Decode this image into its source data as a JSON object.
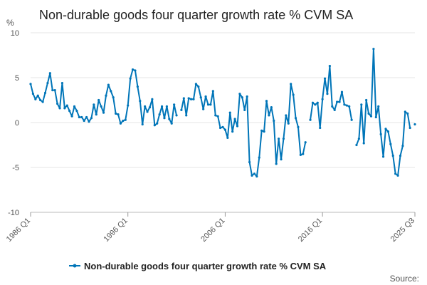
{
  "chart_data": {
    "type": "line",
    "title": "Non-durable goods four quarter growth rate % CVM SA",
    "ylabel": "%",
    "xlabel": "",
    "ylim": [
      -10,
      10
    ],
    "yticks": [
      10,
      5,
      0,
      -5,
      -10
    ],
    "grid": true,
    "legend_position": "bottom",
    "source": "Source:",
    "line_color": "#0075b8",
    "x_tick_labels": [
      "1986 Q1",
      "1996 Q1",
      "2006 Q1",
      "2016 Q1",
      "2025 Q3"
    ],
    "x_tick_indices": [
      0,
      40,
      80,
      120,
      158
    ],
    "series": [
      {
        "name": "Non-durable goods four quarter growth rate % CVM SA",
        "start": "1986 Q1",
        "frequency": "quarterly",
        "values": [
          4.3,
          3.2,
          2.6,
          3.0,
          2.5,
          2.3,
          3.3,
          4.4,
          5.5,
          3.6,
          3.6,
          2.1,
          1.6,
          4.4,
          1.6,
          1.9,
          1.3,
          0.7,
          1.8,
          1.3,
          0.6,
          0.6,
          0.2,
          0.6,
          0.1,
          0.5,
          2.0,
          0.9,
          2.5,
          1.8,
          1.1,
          3.0,
          4.2,
          3.5,
          2.8,
          1.0,
          0.9,
          -0.1,
          0.2,
          0.3,
          1.9,
          4.9,
          5.9,
          5.8,
          4.0,
          2.4,
          -0.2,
          1.8,
          1.2,
          1.7,
          2.6,
          -0.3,
          -0.1,
          0.9,
          1.8,
          0.5,
          1.8,
          0.4,
          -0.1,
          2.0,
          0.8,
          null,
          1.4,
          2.7,
          0.8,
          2.7,
          2.6,
          2.6,
          4.3,
          4.0,
          2.8,
          1.5,
          2.9,
          2.0,
          2.0,
          3.5,
          0.8,
          0.7,
          -0.6,
          -0.5,
          -0.8,
          -1.7,
          1.1,
          -1.0,
          0.4,
          -0.4,
          3.2,
          2.8,
          1.4,
          2.9,
          -4.4,
          -5.9,
          -5.7,
          -6.0,
          -3.9,
          -0.9,
          -1.0,
          2.4,
          0.8,
          1.7,
          0.2,
          -4.6,
          -1.8,
          -4.1,
          -1.8,
          0.8,
          -0.1,
          4.3,
          3.1,
          0.5,
          -0.5,
          -3.6,
          -3.5,
          -2.2,
          null,
          0.3,
          2.2,
          2.0,
          2.2,
          -0.6,
          2.6,
          4.9,
          3.2,
          6.3,
          1.8,
          1.4,
          2.3,
          2.3,
          3.4,
          2.0,
          1.9,
          1.8,
          0.3,
          null,
          -2.5,
          -1.8,
          2.0,
          -2.3,
          2.5,
          1.0,
          0.7,
          8.2,
          0.6,
          1.8,
          -1.3,
          -3.8,
          -0.7,
          -1.0,
          -2.4,
          -3.7,
          -5.7,
          -5.9,
          -3.7,
          -2.6,
          1.2,
          1.0,
          -0.6,
          null,
          -0.2
        ]
      }
    ]
  }
}
